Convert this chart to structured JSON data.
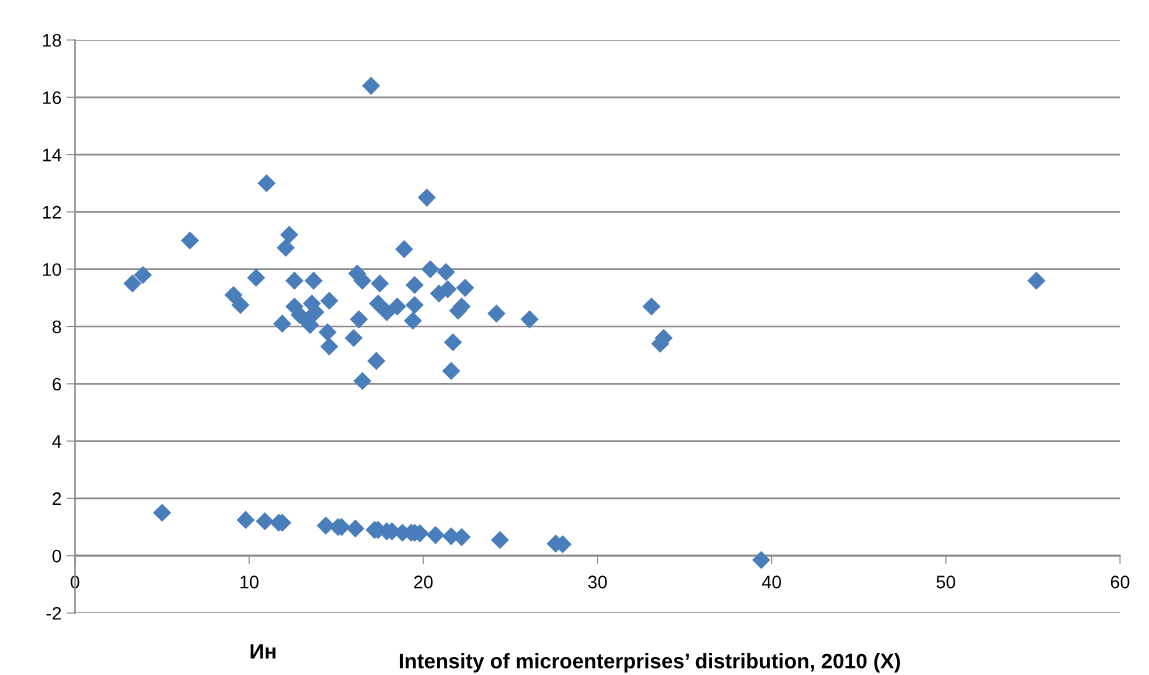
{
  "chart_data": {
    "type": "scatter",
    "xlabel": "Intensity of microenterprises’ distribution, 2010 (X)",
    "annotations": [
      "Ин"
    ],
    "x": [
      3.3,
      3.9,
      6.6,
      9.1,
      9.5,
      10.4,
      11.0,
      11.9,
      12.1,
      12.3,
      12.6,
      12.6,
      12.9,
      13.3,
      13.5,
      13.6,
      13.7,
      13.8,
      14.5,
      14.6,
      14.6,
      16.0,
      16.2,
      16.3,
      16.5,
      16.5,
      17.0,
      17.3,
      17.5,
      17.4,
      17.9,
      18.5,
      18.9,
      19.4,
      19.5,
      19.5,
      20.2,
      20.4,
      20.9,
      21.3,
      21.4,
      21.6,
      21.7,
      22.0,
      22.2,
      22.4,
      24.2,
      26.1,
      33.1,
      33.6,
      33.8,
      55.2,
      5.0,
      9.8,
      10.9,
      11.7,
      11.9,
      14.4,
      15.1,
      15.3,
      16.1,
      17.2,
      17.4,
      17.9,
      18.2,
      18.8,
      19.3,
      19.5,
      19.8,
      20.7,
      21.6,
      22.2,
      24.4,
      27.6,
      28.0,
      39.4
    ],
    "series": [
      {
        "color": "#4a7ebb",
        "values": [
          9.5,
          9.8,
          11.0,
          9.1,
          8.75,
          9.7,
          13.0,
          8.1,
          10.75,
          11.2,
          9.6,
          8.7,
          8.4,
          8.2,
          8.05,
          8.8,
          9.6,
          8.5,
          7.8,
          8.9,
          7.3,
          7.6,
          9.85,
          8.25,
          9.6,
          6.1,
          16.4,
          6.8,
          9.5,
          8.8,
          8.5,
          8.7,
          10.7,
          8.2,
          9.45,
          8.75,
          12.5,
          10.0,
          9.15,
          9.9,
          9.3,
          6.45,
          7.45,
          8.55,
          8.7,
          9.35,
          8.45,
          8.25,
          8.7,
          7.4,
          7.6,
          9.6,
          1.5,
          1.25,
          1.2,
          1.15,
          1.15,
          1.05,
          1.0,
          1.0,
          0.95,
          0.9,
          0.9,
          0.85,
          0.85,
          0.8,
          0.8,
          0.8,
          0.78,
          0.72,
          0.68,
          0.65,
          0.55,
          0.42,
          0.4,
          -0.15
        ]
      }
    ],
    "xlim": [
      0,
      60
    ],
    "xticks": [
      0,
      10,
      20,
      30,
      40,
      50,
      60
    ],
    "ylim": [
      -2,
      18
    ],
    "yticks": [
      -2,
      0,
      2,
      4,
      6,
      8,
      10,
      12,
      14,
      16,
      18
    ],
    "grid": "y",
    "marker": "diamond",
    "legend": false
  }
}
